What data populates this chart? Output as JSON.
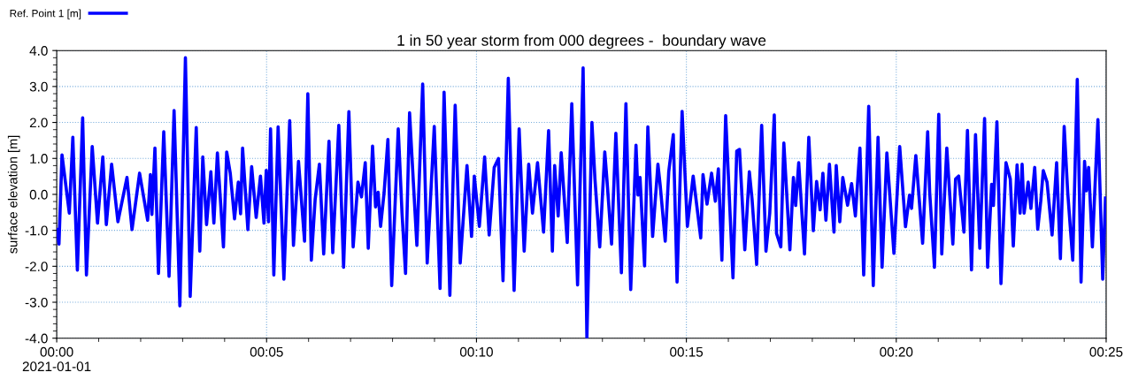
{
  "chart_data": {
    "type": "line",
    "title": "1 in 50 year storm from 000 degrees -  boundary wave",
    "ylabel": "surface elevation [m]",
    "xlim": [
      0,
      0.416667
    ],
    "xticks": [
      {
        "value": 0,
        "label": "00:00\n2021-01-01"
      },
      {
        "value": 0.083333,
        "label": "00:05"
      },
      {
        "value": 0.166667,
        "label": "00:10"
      },
      {
        "value": 0.25,
        "label": "00:15"
      },
      {
        "value": 0.333333,
        "label": "00:20"
      },
      {
        "value": 0.416667,
        "label": "00:25"
      }
    ],
    "ylim": [
      -4,
      4
    ],
    "yticks": [
      {
        "value": -4,
        "label": "-4.0"
      },
      {
        "value": -3,
        "label": "-3.0"
      },
      {
        "value": -2,
        "label": "-2.0"
      },
      {
        "value": -1,
        "label": "-1.0"
      },
      {
        "value": 0,
        "label": "0.0"
      },
      {
        "value": 1,
        "label": "1.0"
      },
      {
        "value": 2,
        "label": "2.0"
      },
      {
        "value": 3,
        "label": "3.0"
      },
      {
        "value": 4,
        "label": "4.0"
      }
    ],
    "grid": true,
    "legend": "top left",
    "marker": "none",
    "line_style": "solid",
    "series": [
      {
        "name": "Ref. Point 1 [m]",
        "color": "#0000ff",
        "x": [
          0.0001,
          0.0009,
          0.0021,
          0.005,
          0.0064,
          0.0082,
          0.0103,
          0.0118,
          0.0141,
          0.0162,
          0.0183,
          0.0197,
          0.0218,
          0.0243,
          0.0279,
          0.0299,
          0.0329,
          0.0361,
          0.0372,
          0.0378,
          0.039,
          0.0404,
          0.0425,
          0.0446,
          0.0466,
          0.0489,
          0.0511,
          0.053,
          0.0554,
          0.0568,
          0.058,
          0.0595,
          0.0612,
          0.0624,
          0.0638,
          0.0662,
          0.0675,
          0.0689,
          0.0706,
          0.0721,
          0.073,
          0.0738,
          0.0759,
          0.0774,
          0.0792,
          0.0809,
          0.0823,
          0.0832,
          0.0841,
          0.0849,
          0.0862,
          0.0879,
          0.0902,
          0.0925,
          0.094,
          0.096,
          0.0984,
          0.0997,
          0.1011,
          0.1026,
          0.1043,
          0.106,
          0.1081,
          0.1096,
          0.112,
          0.1139,
          0.116,
          0.1177,
          0.1196,
          0.121,
          0.1225,
          0.1237,
          0.1254,
          0.1266,
          0.1276,
          0.1286,
          0.13,
          0.1315,
          0.133,
          0.1356,
          0.1371,
          0.1385,
          0.1401,
          0.1415,
          0.143,
          0.1453,
          0.1471,
          0.1499,
          0.1522,
          0.1538,
          0.1561,
          0.1582,
          0.1602,
          0.1629,
          0.1647,
          0.1658,
          0.1678,
          0.1699,
          0.1717,
          0.1737,
          0.1754,
          0.1772,
          0.1793,
          0.1816,
          0.1836,
          0.1856,
          0.1874,
          0.1889,
          0.1909,
          0.1933,
          0.1953,
          0.1968,
          0.1977,
          0.1991,
          0.2003,
          0.2027,
          0.2045,
          0.2068,
          0.209,
          0.2105,
          0.2125,
          0.2137,
          0.2156,
          0.2176,
          0.2184,
          0.2203,
          0.222,
          0.2242,
          0.226,
          0.2279,
          0.23,
          0.2308,
          0.2316,
          0.2334,
          0.2347,
          0.2366,
          0.2387,
          0.2396,
          0.2416,
          0.243,
          0.2448,
          0.2463,
          0.2483,
          0.2504,
          0.2527,
          0.2557,
          0.2566,
          0.2582,
          0.26,
          0.2615,
          0.2627,
          0.2641,
          0.2656,
          0.2685,
          0.27,
          0.2711,
          0.2732,
          0.275,
          0.2761,
          0.2779,
          0.2799,
          0.2816,
          0.2831,
          0.2849,
          0.2858,
          0.2875,
          0.2887,
          0.2911,
          0.2925,
          0.2934,
          0.2946,
          0.2969,
          0.2986,
          0.3004,
          0.3017,
          0.3031,
          0.3042,
          0.3054,
          0.3068,
          0.3086,
          0.3095,
          0.3109,
          0.3121,
          0.314,
          0.3156,
          0.3171,
          0.3189,
          0.3204,
          0.3224,
          0.3242,
          0.3261,
          0.3277,
          0.3296,
          0.3324,
          0.3347,
          0.337,
          0.3386,
          0.3394,
          0.3411,
          0.3438,
          0.3458,
          0.3466,
          0.3485,
          0.3502,
          0.3514,
          0.3534,
          0.3558,
          0.3569,
          0.3581,
          0.3602,
          0.3616,
          0.3632,
          0.3648,
          0.3665,
          0.3684,
          0.3696,
          0.3712,
          0.3719,
          0.3733,
          0.3749,
          0.3769,
          0.3786,
          0.3798,
          0.3813,
          0.3825,
          0.3833,
          0.3841,
          0.3857,
          0.3868,
          0.3883,
          0.3895,
          0.3907,
          0.3917,
          0.3932,
          0.3952,
          0.397,
          0.3985,
          0.4,
          0.4014,
          0.4034,
          0.4052,
          0.4067,
          0.4081,
          0.4088,
          0.4097,
          0.4112,
          0.4134,
          0.4153,
          0.4164
        ],
        "values": [
          -0.97,
          -1.38,
          1.1,
          -0.52,
          1.59,
          -2.11,
          2.13,
          -2.24,
          1.33,
          -0.8,
          1.04,
          -0.84,
          0.84,
          -0.76,
          0.47,
          -0.98,
          0.59,
          -0.72,
          0.55,
          -0.56,
          1.29,
          -2.2,
          1.74,
          -2.28,
          2.33,
          -3.1,
          3.8,
          -2.84,
          1.86,
          -1.58,
          1.04,
          -0.84,
          0.63,
          -0.8,
          1.15,
          -1.46,
          1.18,
          0.59,
          -0.68,
          0.34,
          -0.54,
          1.29,
          -0.98,
          0.77,
          -0.64,
          0.51,
          -0.8,
          0.67,
          -0.76,
          1.82,
          -2.24,
          1.88,
          -2.36,
          2.05,
          -1.42,
          0.92,
          -1.3,
          2.8,
          -1.83,
          -0.15,
          0.84,
          -1.66,
          1.48,
          -1.62,
          1.92,
          -2.03,
          2.3,
          -1.46,
          0.34,
          -0.07,
          0.88,
          -1.5,
          1.34,
          -0.35,
          0.06,
          -0.89,
          0.06,
          1.53,
          -2.54,
          1.82,
          -0.52,
          -2.2,
          2.27,
          0.47,
          -1.42,
          3.07,
          -1.91,
          1.89,
          -2.62,
          2.84,
          -2.81,
          2.48,
          -1.91,
          0.8,
          -1.17,
          0.51,
          -0.89,
          1.04,
          -1.13,
          0.75,
          1.0,
          -2.4,
          3.23,
          -2.67,
          1.82,
          -1.58,
          0.84,
          -0.52,
          0.88,
          -1.05,
          1.77,
          -1.58,
          0.8,
          -0.6,
          1.16,
          -1.34,
          2.52,
          -2.52,
          3.52,
          -4.0,
          2.0,
          0.43,
          -1.46,
          1.18,
          0.47,
          -1.38,
          1.7,
          -2.18,
          2.52,
          -2.65,
          1.37,
          -0.02,
          0.47,
          -1.99,
          1.88,
          -1.17,
          0.84,
          0.26,
          -1.3,
          0.63,
          1.66,
          -2.44,
          2.31,
          -0.89,
          0.51,
          -1.21,
          0.55,
          -0.27,
          0.59,
          -0.19,
          0.71,
          -1.83,
          2.19,
          -2.32,
          1.2,
          1.25,
          -1.54,
          0.63,
          -0.15,
          -1.95,
          1.92,
          -1.58,
          -0.52,
          2.21,
          -1.09,
          -1.46,
          1.43,
          -1.54,
          0.47,
          -0.31,
          0.88,
          -1.66,
          1.59,
          -1.01,
          0.36,
          -0.43,
          0.59,
          -0.72,
          0.84,
          -1.05,
          0.8,
          -0.76,
          0.47,
          -0.3,
          0.3,
          -0.6,
          1.29,
          -2.24,
          2.45,
          -2.54,
          1.59,
          -2.03,
          1.15,
          -1.64,
          1.33,
          -0.9,
          -0.02,
          -0.39,
          1.08,
          -1.36,
          1.74,
          0.06,
          -2.03,
          2.23,
          -1.66,
          1.29,
          -1.38,
          0.43,
          0.51,
          -1.05,
          1.78,
          -2.1,
          1.66,
          -1.5,
          2.11,
          -2.03,
          0.28,
          -0.31,
          2.02,
          -2.48,
          0.88,
          0.43,
          -1.44,
          0.82,
          -0.52,
          0.84,
          -0.52,
          0.34,
          -0.39,
          0.75,
          -0.97,
          -0.19,
          0.66,
          0.34,
          -1.13,
          0.88,
          -1.79,
          1.89,
          0.06,
          -1.83,
          3.2,
          -2.44,
          0.92,
          0.1,
          0.75,
          -1.46,
          2.08,
          -2.36,
          -0.1
        ]
      }
    ]
  }
}
